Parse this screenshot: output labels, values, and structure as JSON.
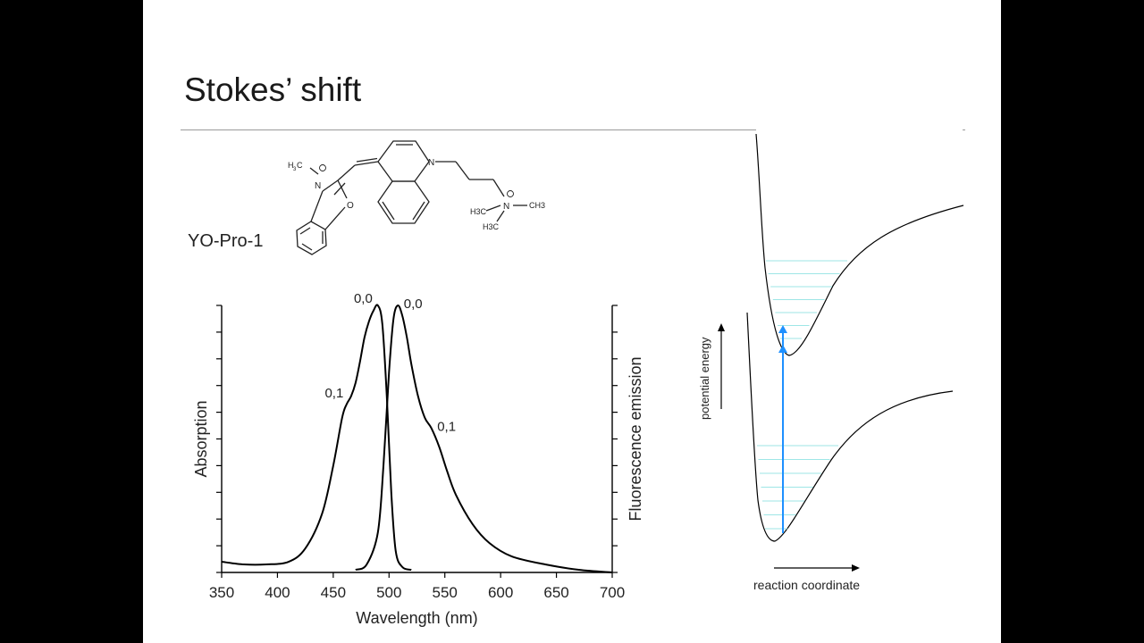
{
  "slide": {
    "title": "Stokes’ shift"
  },
  "molecule": {
    "name": "YO-Pro-1",
    "atoms": {
      "n_plus_methyl": "N",
      "methyl_left": "H",
      "methyl_left_c": "C",
      "methyl_left_3": "3",
      "oxygen": "O",
      "n_ring": "N",
      "n_quat": "N",
      "ch3_a": "H3C",
      "ch3_b": "CH3",
      "ch3_c": "H3C"
    }
  },
  "chart_data": {
    "type": "line",
    "xlabel": "Wavelength (nm)",
    "ylabel_left": "Absorption",
    "ylabel_right": "Fluorescence emission",
    "xlim": [
      350,
      700
    ],
    "x_ticks": [
      350,
      400,
      450,
      500,
      550,
      600,
      650,
      700
    ],
    "ylim": [
      0,
      1
    ],
    "series": [
      {
        "x": [
          350,
          370,
          390,
          410,
          425,
          440,
          450,
          458,
          462,
          466,
          470,
          474,
          478,
          482,
          486,
          490,
          494,
          498,
          502,
          506,
          512,
          520
        ],
        "y": [
          0.04,
          0.03,
          0.03,
          0.04,
          0.09,
          0.22,
          0.4,
          0.58,
          0.63,
          0.66,
          0.71,
          0.79,
          0.88,
          0.94,
          0.98,
          1.0,
          0.93,
          0.66,
          0.3,
          0.08,
          0.02,
          0.01
        ],
        "annotations": [
          {
            "text": "0,1",
            "x": 464
          },
          {
            "text": "0,0",
            "x": 490
          }
        ]
      },
      {
        "x": [
          470,
          480,
          490,
          495,
          500,
          504,
          508,
          512,
          516,
          520,
          526,
          532,
          538,
          545,
          552,
          560,
          575,
          590,
          610,
          640,
          670,
          700
        ],
        "y": [
          0.01,
          0.03,
          0.15,
          0.4,
          0.75,
          0.95,
          1.0,
          0.96,
          0.88,
          0.78,
          0.66,
          0.58,
          0.54,
          0.47,
          0.38,
          0.29,
          0.18,
          0.11,
          0.06,
          0.03,
          0.01,
          0.0
        ],
        "annotations": [
          {
            "text": "0,0",
            "x": 510
          },
          {
            "text": "0,1",
            "x": 540
          }
        ]
      }
    ]
  },
  "energy_diagram": {
    "ylabel": "potential energy",
    "xlabel": "reaction coordinate",
    "upper_levels": 7,
    "lower_levels": 7,
    "colors": {
      "curve": "#000000",
      "level": "#9ee6e6",
      "arrow": "#1e90ff"
    }
  }
}
